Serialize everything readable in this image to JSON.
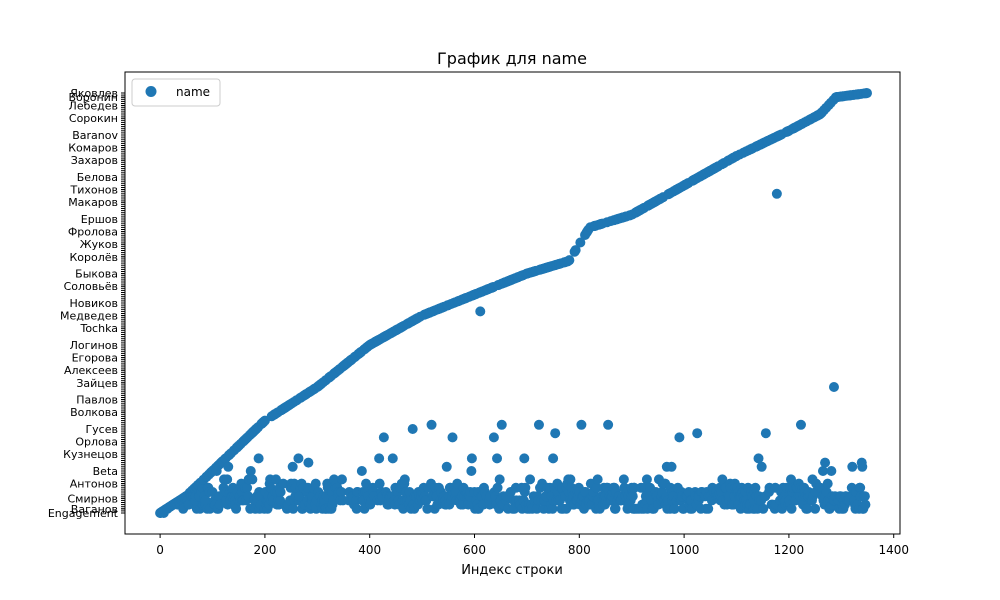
{
  "chart_data": {
    "type": "scatter",
    "title": "График для name",
    "xlabel": "Индекс строки",
    "ylabel": "",
    "xlim": [
      -67,
      1412
    ],
    "ylim": [
      -5,
      105
    ],
    "xticks": [
      0,
      200,
      400,
      600,
      800,
      1000,
      1200,
      1400
    ],
    "grid": false,
    "legend_position": "top-left",
    "colors": {
      "series": "#1f77b4"
    },
    "yticks": [
      {
        "v": 0,
        "label": "Engagement"
      },
      {
        "v": 1,
        "label": "Ваганов"
      },
      {
        "v": 3.5,
        "label": "Смирнов"
      },
      {
        "v": 7,
        "label": "Антонов"
      },
      {
        "v": 10,
        "label": "Beta"
      },
      {
        "v": 14,
        "label": "Кузнецов"
      },
      {
        "v": 17,
        "label": "Орлова"
      },
      {
        "v": 20,
        "label": "Гусев"
      },
      {
        "v": 24,
        "label": "Волкова"
      },
      {
        "v": 27,
        "label": "Павлов"
      },
      {
        "v": 31,
        "label": "Зайцев"
      },
      {
        "v": 34,
        "label": "Алексеев"
      },
      {
        "v": 37,
        "label": "Егорова"
      },
      {
        "v": 40,
        "label": "Логинов"
      },
      {
        "v": 44,
        "label": "Tochka"
      },
      {
        "v": 47,
        "label": "Медведев"
      },
      {
        "v": 50,
        "label": "Новиков"
      },
      {
        "v": 54,
        "label": "Соловьёв"
      },
      {
        "v": 57,
        "label": "Быкова"
      },
      {
        "v": 61,
        "label": "Королёв"
      },
      {
        "v": 64,
        "label": "Жуков"
      },
      {
        "v": 67,
        "label": "Фролова"
      },
      {
        "v": 70,
        "label": "Ершов"
      },
      {
        "v": 74,
        "label": "Макаров"
      },
      {
        "v": 77,
        "label": "Тихонов"
      },
      {
        "v": 80,
        "label": "Белова"
      },
      {
        "v": 84,
        "label": "Захаров"
      },
      {
        "v": 87,
        "label": "Комаров"
      },
      {
        "v": 90,
        "label": "Baranov"
      },
      {
        "v": 94,
        "label": "Сорокин"
      },
      {
        "v": 97,
        "label": "Лебедев"
      },
      {
        "v": 99,
        "label": "Воронин"
      },
      {
        "v": 100,
        "label": "Яковлев"
      }
    ],
    "series": [
      {
        "name": "name",
        "color": "#1f77b4",
        "generation": {
          "n": 1350,
          "diag_end": 100,
          "curve": [
            [
              0,
              0
            ],
            [
              50,
              4
            ],
            [
              100,
              10
            ],
            [
              200,
              22
            ],
            [
              300,
              30
            ],
            [
              400,
              40
            ],
            [
              500,
              47
            ],
            [
              600,
              52
            ],
            [
              700,
              57
            ],
            [
              780,
              60
            ],
            [
              820,
              68
            ],
            [
              900,
              71
            ],
            [
              1000,
              78
            ],
            [
              1100,
              85
            ],
            [
              1200,
              91
            ],
            [
              1260,
              95
            ],
            [
              1290,
              99
            ],
            [
              1350,
              100
            ]
          ],
          "bands": [
            [
              0,
              0
            ],
            [
              1,
              0.5
            ],
            [
              3,
              0.3
            ],
            [
              5,
              0.12
            ],
            [
              10,
              0.03
            ],
            [
              18,
              0.015
            ],
            [
              30,
              0.006
            ],
            [
              45,
              0.003
            ],
            [
              60,
              0.002
            ],
            [
              75,
              0.001
            ]
          ],
          "keep_fraction": 0.42
        }
      }
    ]
  }
}
